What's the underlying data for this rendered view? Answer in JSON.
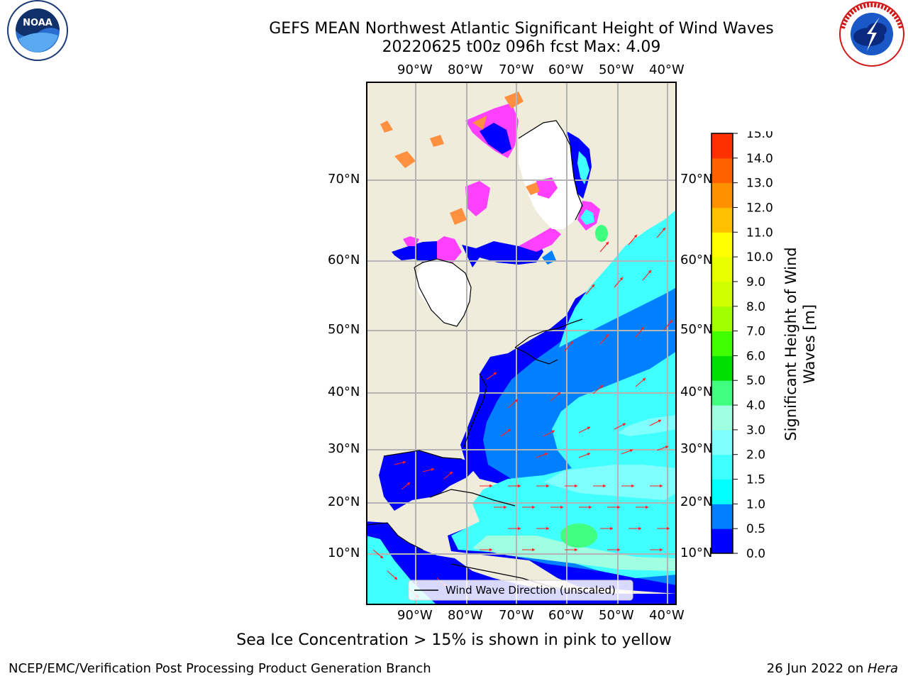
{
  "header": {
    "title": "GEFS MEAN Northwest Atlantic Significant Height of Wind Waves",
    "subtitle": "20220625 t00z 096h fcst   Max: 4.09"
  },
  "logos": {
    "left": {
      "text": "NOAA",
      "ring_text": "NATIONAL OCEANIC AND ATMOSPHERIC ADMINISTRATION · U.S. DEPARTMENT OF COMMERCE",
      "icon": "noaa-logo"
    },
    "right": {
      "ring_text": "NATIONAL WEATHER SERVICE",
      "icon": "nws-logo"
    }
  },
  "map": {
    "lon_labels": [
      "90°W",
      "80°W",
      "70°W",
      "60°W",
      "50°W",
      "40°W"
    ],
    "lat_labels": [
      "70°N",
      "60°N",
      "50°N",
      "40°N",
      "30°N",
      "20°N",
      "10°N"
    ],
    "legend_label": "Wind Wave Direction (unscaled)",
    "colors": {
      "land": "#efecdc",
      "ice_free_unknown": "#ffffff",
      "arrows": "#ff2020",
      "grid": "#b4b4b4"
    }
  },
  "colorbar": {
    "label_line1": "Significant Height of Wind",
    "label_line2": "Waves [m]",
    "ticks": [
      "0.0",
      "0.5",
      "1.0",
      "1.5",
      "2.0",
      "3.0",
      "4.0",
      "5.0",
      "6.0",
      "7.0",
      "8.0",
      "9.0",
      "10.0",
      "11.0",
      "12.0",
      "13.0",
      "14.0",
      "15.0"
    ],
    "colors": [
      "#0000ff",
      "#0080ff",
      "#00ffff",
      "#40ffff",
      "#80ffff",
      "#a0ffe0",
      "#40ff80",
      "#00e000",
      "#40ff00",
      "#a0ff00",
      "#d0ff00",
      "#e8ff00",
      "#ffff00",
      "#ffc000",
      "#ff9000",
      "#ff6000",
      "#ff3000",
      "#ff0000"
    ]
  },
  "footer": {
    "note": "Sea Ice Concentration > 15% is shown in pink to yellow",
    "credit": "NCEP/EMC/Verification Post Processing Product Generation Branch",
    "date": "26 Jun 2022 on ",
    "machine": "Hera"
  }
}
